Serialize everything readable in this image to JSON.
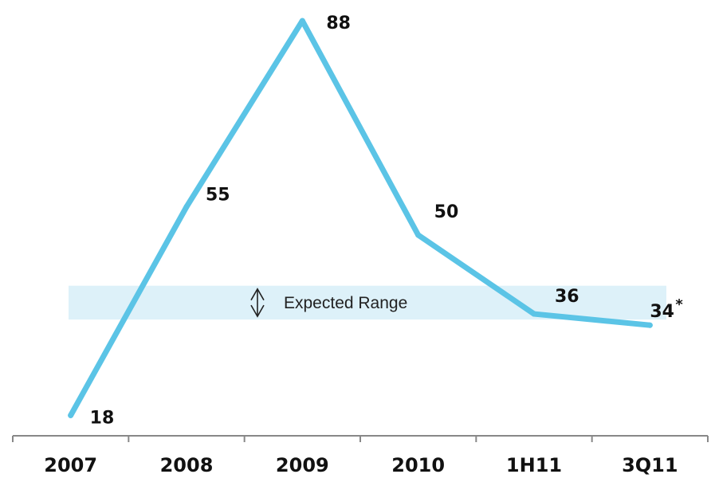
{
  "chart_data": {
    "type": "line",
    "categories": [
      "2007",
      "2008",
      "2009",
      "2010",
      "1H11",
      "3Q11"
    ],
    "values": [
      18,
      55,
      88,
      50,
      36,
      34
    ],
    "labels": [
      "18",
      "55",
      "88",
      "50",
      "36",
      "34"
    ],
    "last_value_note": "*",
    "ylim": [
      10,
      90
    ],
    "grid": false,
    "line_color": "#5bc4e6",
    "band": {
      "label": "Expected Range",
      "range": [
        35,
        41
      ],
      "color": "#ddf1f9"
    },
    "axis_color": "#888888"
  }
}
